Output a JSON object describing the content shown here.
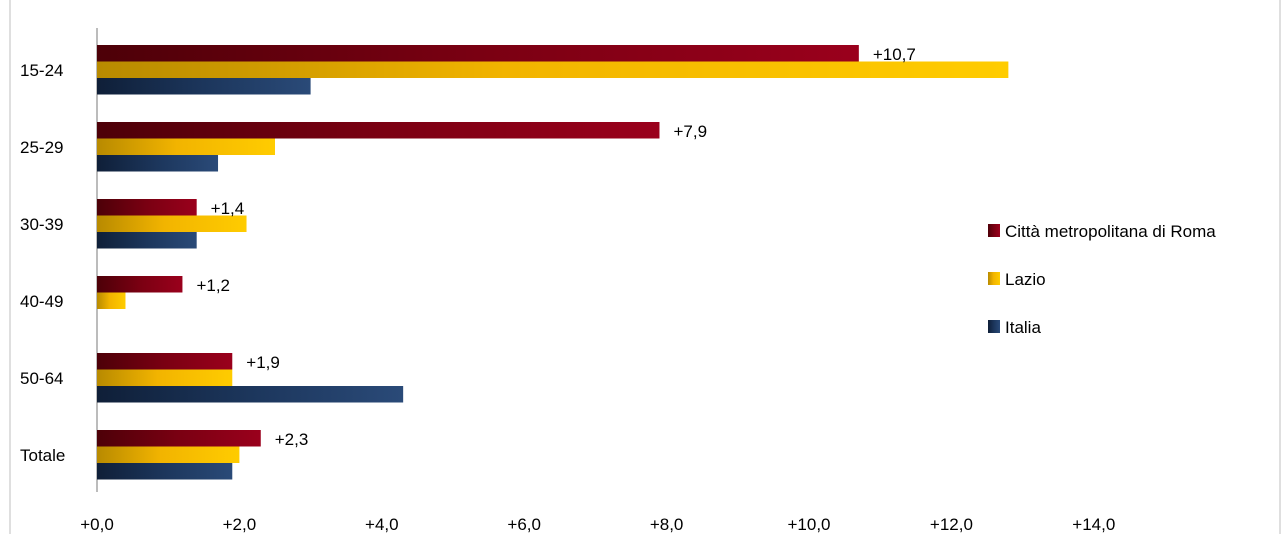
{
  "chart_data": {
    "type": "bar",
    "orientation": "horizontal",
    "categories": [
      "15-24",
      "25-29",
      "30-39",
      "40-49",
      "50-64",
      "Totale"
    ],
    "series": [
      {
        "name": "Città metropolitana di Roma",
        "values": [
          10.7,
          7.9,
          1.4,
          1.2,
          1.9,
          2.3
        ],
        "color": "#8b0016"
      },
      {
        "name": "Lazio",
        "values": [
          12.8,
          2.5,
          2.1,
          0.4,
          1.9,
          2.0
        ],
        "color": "#f5b800"
      },
      {
        "name": "Italia",
        "values": [
          3.0,
          1.7,
          1.4,
          0.0,
          4.3,
          1.9
        ],
        "color": "#1f3b63"
      }
    ],
    "data_labels": {
      "series": "Città metropolitana di Roma",
      "text": [
        "+10,7",
        "+7,9",
        "+1,4",
        "+1,2",
        "+1,9",
        "+2,3"
      ]
    },
    "x_ticks": [
      "+0,0",
      "+2,0",
      "+4,0",
      "+6,0",
      "+8,0",
      "+10,0",
      "+12,0",
      "+14,0"
    ],
    "xlim": [
      0,
      16
    ],
    "grid": false,
    "legend_position": "right"
  }
}
